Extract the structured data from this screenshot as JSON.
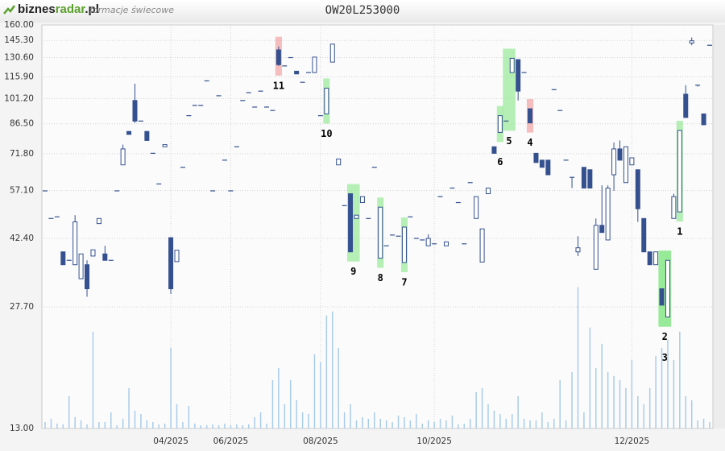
{
  "chart_data": {
    "type": "candlestick",
    "title": "OW20L253000",
    "brand": [
      "biznes",
      "radar",
      ".pl"
    ],
    "subtitle": "formacje świecowe",
    "up_color": "#ffffff",
    "down_color": "#34508e",
    "volume_color": "#a9cce9",
    "log": true,
    "grid": true,
    "ylim": [
      13,
      160
    ],
    "yticks": [
      {
        "value": 13,
        "label": "13.00"
      },
      {
        "value": 27.7,
        "label": "27.70"
      },
      {
        "value": 42.4,
        "label": "42.40"
      },
      {
        "value": 57.1,
        "label": "57.10"
      },
      {
        "value": 71.8,
        "label": "71.80"
      },
      {
        "value": 86.5,
        "label": "86.50"
      },
      {
        "value": 101.2,
        "label": "101.20"
      },
      {
        "value": 115.9,
        "label": "115.90"
      },
      {
        "value": 130.6,
        "label": "130.60"
      },
      {
        "value": 145.3,
        "label": "145.30"
      },
      {
        "value": 160,
        "label": "160.00"
      }
    ],
    "y2lim": [
      0,
      500
    ],
    "categories": [
      null,
      null,
      null,
      null,
      null,
      null,
      null,
      null,
      null,
      null,
      null,
      null,
      null,
      null,
      null,
      null,
      null,
      null,
      null,
      null,
      null,
      "04/2025",
      null,
      null,
      null,
      null,
      null,
      null,
      null,
      null,
      null,
      "06/2025",
      null,
      null,
      null,
      null,
      null,
      null,
      null,
      null,
      null,
      null,
      null,
      null,
      null,
      null,
      "08/2025",
      null,
      null,
      null,
      null,
      null,
      null,
      null,
      null,
      null,
      null,
      null,
      null,
      null,
      null,
      null,
      null,
      null,
      null,
      "10/2025",
      null,
      null,
      null,
      null,
      null,
      null,
      null,
      null,
      null,
      null,
      null,
      null,
      null,
      null,
      null,
      null,
      null,
      null,
      null,
      null,
      null,
      null,
      null,
      null,
      null,
      null,
      null,
      null,
      null,
      null,
      null,
      null,
      "12/2025",
      null,
      null,
      null,
      null,
      null,
      null,
      null,
      null,
      null,
      null,
      null,
      null,
      null
    ],
    "ohlc": [
      [
        57,
        57,
        57,
        57
      ],
      [
        48,
        48,
        48,
        48
      ],
      [
        48.5,
        48.5,
        48.5,
        48.5
      ],
      [
        39,
        39,
        36,
        36
      ],
      [
        37,
        37,
        37,
        37
      ],
      [
        36,
        49,
        36,
        47
      ],
      [
        33,
        38.5,
        33,
        38.5
      ],
      [
        36,
        37,
        29.5,
        31
      ],
      [
        38,
        39.5,
        38,
        39.5
      ],
      [
        46.5,
        48,
        46.5,
        48
      ],
      [
        38.5,
        40.5,
        37,
        37
      ],
      [
        37,
        37,
        37,
        37
      ],
      [
        57,
        57,
        57,
        57
      ],
      [
        67,
        76,
        67,
        74
      ],
      [
        82.5,
        82.5,
        81,
        81
      ],
      [
        100,
        111,
        87,
        88
      ],
      [
        88,
        88,
        88,
        88
      ],
      [
        82.5,
        82.5,
        78,
        78
      ],
      [
        72,
        72,
        72,
        72
      ],
      [
        59.5,
        59.5,
        59.5,
        59.5
      ],
      [
        75,
        76,
        75,
        76
      ],
      [
        42.6,
        42.6,
        30,
        31
      ],
      [
        36.7,
        39.4,
        36.7,
        39.4
      ],
      [
        66,
        66,
        66,
        66
      ],
      [
        91,
        91,
        91,
        91
      ],
      [
        97,
        97,
        97,
        97
      ],
      [
        97,
        97,
        97,
        97
      ],
      [
        113,
        113,
        113,
        113
      ],
      [
        57,
        57,
        57,
        57
      ],
      [
        103,
        103,
        103,
        103
      ],
      [
        69,
        69,
        69,
        69
      ],
      [
        57,
        57,
        57,
        57
      ],
      [
        75,
        75,
        75,
        75
      ],
      [
        100,
        100,
        100,
        100
      ],
      [
        105,
        105,
        105,
        105
      ],
      [
        96,
        96,
        96,
        96
      ],
      [
        106,
        106,
        106,
        106
      ],
      [
        96,
        96,
        96,
        96
      ],
      [
        94,
        94,
        94,
        94
      ],
      [
        137,
        140,
        124,
        125
      ],
      [
        124,
        124,
        124,
        124
      ],
      [
        130.6,
        130.6,
        130.6,
        130.6
      ],
      [
        120,
        120,
        118,
        118
      ],
      [
        112,
        112,
        112,
        112
      ],
      [
        119,
        119,
        119,
        119
      ],
      [
        119,
        131,
        119,
        131
      ],
      [
        91,
        91,
        91,
        91
      ],
      [
        92,
        108,
        92,
        108
      ],
      [
        127,
        142,
        127,
        142
      ],
      [
        67,
        69.5,
        67,
        69.5
      ],
      [
        52,
        52,
        52,
        52
      ],
      [
        56,
        56,
        39,
        39
      ],
      [
        48,
        49,
        48,
        49
      ],
      [
        53,
        55,
        53,
        55
      ],
      [
        48,
        48,
        48,
        48
      ],
      [
        66,
        66,
        66,
        66
      ],
      [
        37.5,
        51.5,
        37.5,
        51.5
      ],
      [
        40.5,
        40.5,
        40.5,
        40.5
      ],
      [
        43.3,
        43.3,
        43.3,
        43.3
      ],
      [
        43,
        43,
        43,
        43
      ],
      [
        36.5,
        45.5,
        36.5,
        45.5
      ],
      [
        48.5,
        48.5,
        48.5,
        48.5
      ],
      [
        42.4,
        42.4,
        42.4,
        42.4
      ],
      [
        42,
        42,
        42,
        42
      ],
      [
        40.5,
        43.5,
        40.5,
        42.4
      ],
      [
        41,
        41,
        41,
        41
      ],
      [
        55,
        55,
        55,
        55
      ],
      [
        40.5,
        41.5,
        40.5,
        41.5
      ],
      [
        58,
        58,
        58,
        58
      ],
      [
        53,
        53,
        53,
        53
      ],
      [
        41,
        41,
        41,
        41
      ],
      [
        60,
        60,
        60,
        60
      ],
      [
        48,
        55,
        48,
        55
      ],
      [
        36.6,
        45,
        36.6,
        45
      ],
      [
        56,
        58,
        56,
        58
      ],
      [
        75,
        75,
        72,
        72
      ],
      [
        82,
        91,
        82,
        91
      ],
      [
        88,
        88,
        88,
        88
      ],
      [
        119,
        130,
        119,
        130
      ],
      [
        129,
        129,
        100,
        106
      ],
      [
        119,
        119,
        119,
        119
      ],
      [
        95,
        95,
        87,
        87
      ],
      [
        72,
        72,
        68,
        68
      ],
      [
        69,
        69,
        66,
        66
      ],
      [
        69,
        69,
        63,
        63
      ],
      [
        107,
        107,
        107,
        107
      ],
      [
        94,
        94,
        94,
        94
      ],
      [
        69,
        69,
        69,
        69
      ],
      [
        62,
        62,
        58,
        62
      ],
      [
        39,
        43,
        38,
        40
      ],
      [
        66,
        66,
        58,
        58
      ],
      [
        65,
        65,
        58,
        58
      ],
      [
        35,
        48,
        35,
        46
      ],
      [
        46,
        59,
        44,
        44
      ],
      [
        42,
        59,
        42,
        58
      ],
      [
        63,
        77,
        57,
        74
      ],
      [
        74,
        78,
        69,
        69
      ],
      [
        60,
        75,
        60,
        75
      ],
      [
        67,
        70,
        67,
        70
      ],
      [
        65,
        65,
        47,
        51
      ],
      [
        48,
        48,
        39,
        39
      ],
      [
        39,
        39,
        36,
        36
      ],
      [
        36,
        39,
        36,
        39
      ],
      [
        31,
        31,
        28,
        28
      ],
      [
        26,
        37,
        26,
        37
      ],
      [
        48,
        56,
        48,
        55
      ],
      [
        50,
        83,
        50,
        83
      ],
      [
        104,
        110,
        90,
        90
      ],
      [
        143,
        148,
        141,
        145
      ],
      [
        110,
        110,
        109,
        110
      ],
      [
        92,
        92,
        86,
        86
      ],
      [
        141,
        141,
        141,
        141
      ]
    ],
    "volume": [
      8,
      12,
      6,
      5,
      40,
      14,
      10,
      5,
      120,
      8,
      8,
      20,
      4,
      12,
      50,
      22,
      18,
      10,
      8,
      5,
      6,
      100,
      30,
      8,
      28,
      6,
      4,
      4,
      5,
      4,
      6,
      4,
      5,
      4,
      5,
      14,
      20,
      6,
      60,
      75,
      30,
      60,
      35,
      20,
      18,
      92,
      82,
      140,
      145,
      100,
      20,
      30,
      10,
      14,
      12,
      20,
      12,
      10,
      8,
      16,
      14,
      10,
      18,
      6,
      10,
      8,
      12,
      10,
      16,
      5,
      6,
      12,
      45,
      50,
      30,
      22,
      18,
      12,
      18,
      40,
      12,
      10,
      10,
      20,
      8,
      12,
      60,
      10,
      70,
      175,
      20,
      125,
      75,
      105,
      70,
      65,
      60,
      50,
      85,
      40,
      30,
      50,
      90,
      100,
      110,
      85,
      120,
      40,
      35,
      10,
      12,
      8
    ],
    "annotations": [
      {
        "label": "1",
        "from": 106,
        "to": 106,
        "color": "#7ee67e"
      },
      {
        "label": "2",
        "from": 103,
        "to": 104,
        "color": "#7ee67e"
      },
      {
        "label": "3",
        "from": 103,
        "to": 104,
        "color": "#7ee67e"
      },
      {
        "label": "4",
        "from": 81,
        "to": 81,
        "color": "#f08a8a"
      },
      {
        "label": "5",
        "from": 77,
        "to": 78,
        "color": "#7ee67e"
      },
      {
        "label": "6",
        "from": 76,
        "to": 76,
        "color": "#7ee67e"
      },
      {
        "label": "7",
        "from": 60,
        "to": 60,
        "color": "#7ee67e"
      },
      {
        "label": "8",
        "from": 56,
        "to": 56,
        "color": "#7ee67e"
      },
      {
        "label": "9",
        "from": 51,
        "to": 52,
        "color": "#7ee67e"
      },
      {
        "label": "10",
        "from": 47,
        "to": 47,
        "color": "#7ee67e"
      },
      {
        "label": "11",
        "from": 39,
        "to": 39,
        "color": "#f08a8a"
      }
    ]
  }
}
